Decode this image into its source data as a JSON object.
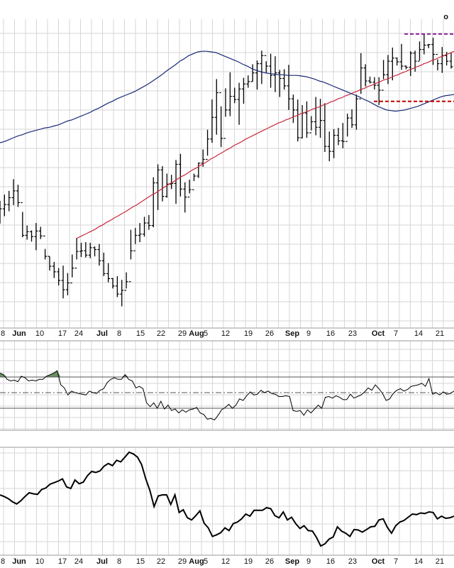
{
  "colors": {
    "grid": "#d6d6d6",
    "price": "#000000",
    "ma_50": "#1b2a78",
    "ma_200": "#c8283c",
    "resistance": "#8a1f9c",
    "support": "#c00000",
    "rsi_fill": "#6b8f62",
    "indicator_line": "#000000",
    "reference": "#555555"
  },
  "corner_label": "o",
  "chart_data": [
    {
      "type": "ohlc",
      "panel": "price",
      "title": "",
      "xlabel": "",
      "ylabel": "",
      "grid": true,
      "x_labels": [
        {
          "text": "8",
          "bold": false
        },
        {
          "text": "Jun",
          "bold": true
        },
        {
          "text": "10",
          "bold": false
        },
        {
          "text": "17",
          "bold": false
        },
        {
          "text": "24",
          "bold": false
        },
        {
          "text": "Jul",
          "bold": true
        },
        {
          "text": "8",
          "bold": false
        },
        {
          "text": "15",
          "bold": false
        },
        {
          "text": "22",
          "bold": false
        },
        {
          "text": "29",
          "bold": false
        },
        {
          "text": "Aug",
          "bold": true
        },
        {
          "text": "5",
          "bold": false
        },
        {
          "text": "12",
          "bold": false
        },
        {
          "text": "19",
          "bold": false
        },
        {
          "text": "26",
          "bold": false
        },
        {
          "text": "Sep",
          "bold": true
        },
        {
          "text": "9",
          "bold": false
        },
        {
          "text": "16",
          "bold": false
        },
        {
          "text": "23",
          "bold": false
        },
        {
          "text": "Oct",
          "bold": true
        },
        {
          "text": "7",
          "bold": false
        },
        {
          "text": "14",
          "bold": false
        },
        {
          "text": "21",
          "bold": false
        }
      ],
      "bars": [
        [
          186,
          169,
          206,
          193
        ],
        [
          193,
          181,
          216,
          200
        ],
        [
          200,
          189,
          222,
          211
        ],
        [
          211,
          199,
          241,
          222
        ],
        [
          222,
          196,
          232,
          203
        ],
        [
          203,
          147,
          188,
          150
        ],
        [
          150,
          143,
          166,
          156
        ],
        [
          156,
          140,
          158,
          148
        ],
        [
          148,
          126,
          170,
          157
        ],
        [
          157,
          144,
          164,
          149
        ],
        [
          149,
          111,
          128,
          116
        ],
        [
          116,
          93,
          116,
          100
        ],
        [
          100,
          81,
          107,
          91
        ],
        [
          91,
          69,
          97,
          77
        ],
        [
          77,
          48,
          101,
          62
        ],
        [
          62,
          53,
          89,
          73
        ],
        [
          73,
          82,
          119,
          97
        ],
        [
          97,
          111,
          146,
          124
        ],
        [
          124,
          115,
          138,
          125
        ],
        [
          125,
          114,
          139,
          118
        ],
        [
          118,
          113,
          138,
          130
        ],
        [
          130,
          116,
          132,
          127
        ],
        [
          127,
          101,
          136,
          109
        ],
        [
          109,
          84,
          122,
          88
        ],
        [
          88,
          74,
          105,
          80
        ],
        [
          80,
          64,
          81,
          68
        ],
        [
          68,
          50,
          84,
          55
        ],
        [
          55,
          35,
          78,
          61
        ],
        [
          61,
          64,
          90,
          75
        ],
        [
          75,
          111,
          159,
          125
        ],
        [
          125,
          136,
          162,
          150
        ],
        [
          150,
          139,
          170,
          152
        ],
        [
          152,
          148,
          180,
          170
        ],
        [
          170,
          159,
          183,
          166
        ],
        [
          166,
          163,
          244,
          235
        ],
        [
          235,
          191,
          265,
          256
        ],
        [
          256,
          205,
          262,
          213
        ],
        [
          213,
          211,
          250,
          233
        ],
        [
          233,
          225,
          248,
          234
        ],
        [
          234,
          201,
          272,
          265
        ],
        [
          265,
          213,
          282,
          225
        ],
        [
          225,
          187,
          236,
          212
        ],
        [
          212,
          218,
          240,
          224
        ],
        [
          224,
          238,
          250,
          246
        ],
        [
          246,
          243,
          268,
          267
        ],
        [
          267,
          261,
          289,
          273
        ],
        [
          273,
          279,
          321,
          306
        ],
        [
          306,
          300,
          370,
          341
        ],
        [
          341,
          313,
          403,
          381
        ],
        [
          381,
          293,
          359,
          307
        ],
        [
          307,
          342,
          388,
          353
        ],
        [
          353,
          343,
          414,
          375
        ],
        [
          375,
          364,
          389,
          370
        ],
        [
          370,
          329,
          397,
          387
        ],
        [
          387,
          363,
          405,
          395
        ],
        [
          395,
          389,
          409,
          399
        ],
        [
          399,
          399,
          427,
          413
        ],
        [
          413,
          386,
          433,
          428
        ],
        [
          428,
          395,
          449,
          441
        ],
        [
          441,
          413,
          432,
          424
        ],
        [
          424,
          389,
          444,
          409
        ],
        [
          409,
          382,
          440,
          413
        ],
        [
          413,
          374,
          418,
          404
        ],
        [
          404,
          386,
          419,
          392
        ],
        [
          392,
          353,
          426,
          371
        ],
        [
          371,
          332,
          378,
          353
        ],
        [
          353,
          302,
          370,
          308
        ],
        [
          308,
          307,
          361,
          348
        ],
        [
          348,
          308,
          367,
          316
        ],
        [
          316,
          320,
          343,
          334
        ],
        [
          334,
          312,
          374,
          325
        ],
        [
          325,
          308,
          371,
          336
        ],
        [
          336,
          285,
          364,
          294
        ],
        [
          294,
          270,
          318,
          286
        ],
        [
          286,
          275,
          322,
          312
        ],
        [
          312,
          296,
          324,
          303
        ],
        [
          303,
          291,
          332,
          302
        ],
        [
          302,
          310,
          347,
          340
        ],
        [
          340,
          324,
          354,
          329
        ],
        [
          329,
          321,
          378,
          371
        ],
        [
          371,
          379,
          445,
          421
        ],
        [
          421,
          391,
          427,
          400
        ],
        [
          400,
          396,
          407,
          398
        ],
        [
          398,
          386,
          406,
          393
        ],
        [
          393,
          361,
          406,
          385
        ],
        [
          385,
          403,
          434,
          410
        ],
        [
          410,
          395,
          442,
          432
        ],
        [
          432,
          401,
          454,
          437
        ],
        [
          437,
          425,
          438,
          431
        ],
        [
          431,
          418,
          460,
          424
        ],
        [
          424,
          419,
          425,
          422
        ],
        [
          422,
          408,
          448,
          445
        ],
        [
          445,
          415,
          449,
          432
        ],
        [
          432,
          433,
          464,
          451
        ],
        [
          451,
          443,
          476,
          458
        ],
        [
          458,
          453,
          460,
          459
        ],
        [
          459,
          426,
          470,
          443
        ],
        [
          443,
          417,
          435,
          428
        ],
        [
          428,
          413,
          455,
          441
        ],
        [
          441,
          425,
          447,
          432
        ],
        [
          432,
          420,
          446,
          423
        ]
      ],
      "ma_50": [
        300,
        302,
        305,
        308,
        311,
        313,
        316,
        318,
        320,
        322,
        324,
        325,
        327,
        329,
        332,
        335,
        337,
        340,
        343,
        346,
        349,
        353,
        356,
        360,
        364,
        367,
        371,
        374,
        377,
        380,
        383,
        387,
        391,
        395,
        400,
        405,
        410,
        416,
        421,
        426,
        432,
        436,
        441,
        444,
        447,
        448,
        448,
        447,
        446,
        443,
        440,
        437,
        434,
        431,
        427,
        424,
        420,
        417,
        415,
        413,
        412,
        411,
        410,
        410,
        409,
        409,
        409,
        408,
        407,
        405,
        403,
        400,
        398,
        395,
        392,
        389,
        386,
        383,
        380,
        377,
        374,
        370,
        367,
        363,
        359,
        356,
        353,
        352,
        351,
        352,
        353,
        355,
        357,
        359,
        362,
        365,
        368,
        371,
        374,
        376,
        377,
        378
      ],
      "ma_200": [
        145,
        148,
        151,
        154,
        157,
        160,
        164,
        167,
        171,
        174,
        178,
        181,
        185,
        188,
        192,
        196,
        199,
        203,
        207,
        211,
        215,
        218,
        222,
        226,
        230,
        234,
        237,
        241,
        245,
        248,
        252,
        256,
        259,
        263,
        266,
        270,
        274,
        277,
        281,
        284,
        288,
        291,
        295,
        298,
        301,
        305,
        308,
        311,
        314,
        317,
        320,
        323,
        326,
        329,
        332,
        334,
        337,
        339,
        342,
        344,
        347,
        349,
        351,
        354,
        356,
        358,
        361,
        363,
        366,
        368,
        371,
        373,
        376,
        378,
        381,
        383,
        386,
        388,
        391,
        393,
        396,
        398,
        401,
        403,
        405,
        408,
        410,
        413,
        415,
        418,
        420,
        423,
        425,
        428,
        430,
        433,
        435,
        438,
        440,
        443,
        445,
        448
      ],
      "horizontal_levels": [
        {
          "name": "resistance",
          "value": 476,
          "style": "dashed"
        },
        {
          "name": "support",
          "value": 367,
          "style": "dashed"
        }
      ]
    },
    {
      "type": "line",
      "panel": "indicator-1",
      "title": "",
      "ylim": [
        0,
        100
      ],
      "reference_lines": [
        70,
        50,
        30
      ],
      "fill_above": 70,
      "values": [
        75,
        73,
        67,
        65,
        66,
        64,
        71,
        69,
        65,
        66,
        65,
        67,
        67,
        71,
        73,
        75,
        78,
        60,
        56,
        47,
        52,
        50,
        49,
        48,
        47,
        52,
        50,
        49,
        53,
        55,
        63,
        67,
        69,
        67,
        67,
        73,
        67,
        65,
        56,
        58,
        55,
        37,
        32,
        37,
        30,
        39,
        29,
        34,
        27,
        29,
        24,
        28,
        25,
        28,
        29,
        31,
        24,
        22,
        16,
        17,
        15,
        21,
        28,
        31,
        35,
        30,
        34,
        42,
        40,
        46,
        51,
        47,
        48,
        53,
        50,
        52,
        49,
        48,
        45,
        45,
        46,
        45,
        27,
        26,
        27,
        21,
        28,
        24,
        29,
        34,
        30,
        44,
        45,
        43,
        46,
        44,
        41,
        41,
        48,
        43,
        45,
        47,
        51,
        56,
        53,
        60,
        55,
        49,
        40,
        42,
        49,
        53,
        55,
        52,
        54,
        58,
        59,
        60,
        62,
        58,
        68,
        48,
        50,
        47,
        51,
        48,
        49,
        52
      ]
    },
    {
      "type": "line",
      "panel": "indicator-2",
      "title": "",
      "values": [
        100,
        97,
        93,
        87,
        83,
        89,
        97,
        104,
        102,
        101,
        110,
        113,
        120,
        123,
        126,
        130,
        115,
        112,
        128,
        121,
        124,
        136,
        144,
        142,
        145,
        154,
        159,
        155,
        165,
        162,
        171,
        180,
        177,
        171,
        157,
        130,
        108,
        78,
        98,
        100,
        100,
        82,
        100,
        67,
        72,
        57,
        53,
        61,
        70,
        47,
        38,
        22,
        25,
        29,
        38,
        33,
        46,
        49,
        55,
        64,
        60,
        71,
        71,
        71,
        76,
        74,
        61,
        57,
        68,
        53,
        58,
        46,
        37,
        42,
        33,
        32,
        20,
        4,
        8,
        17,
        21,
        40,
        32,
        28,
        22,
        35,
        34,
        30,
        35,
        40,
        41,
        53,
        55,
        39,
        28,
        42,
        49,
        52,
        58,
        64,
        63,
        66,
        65,
        68,
        67,
        55,
        60,
        56,
        57,
        60
      ]
    }
  ]
}
